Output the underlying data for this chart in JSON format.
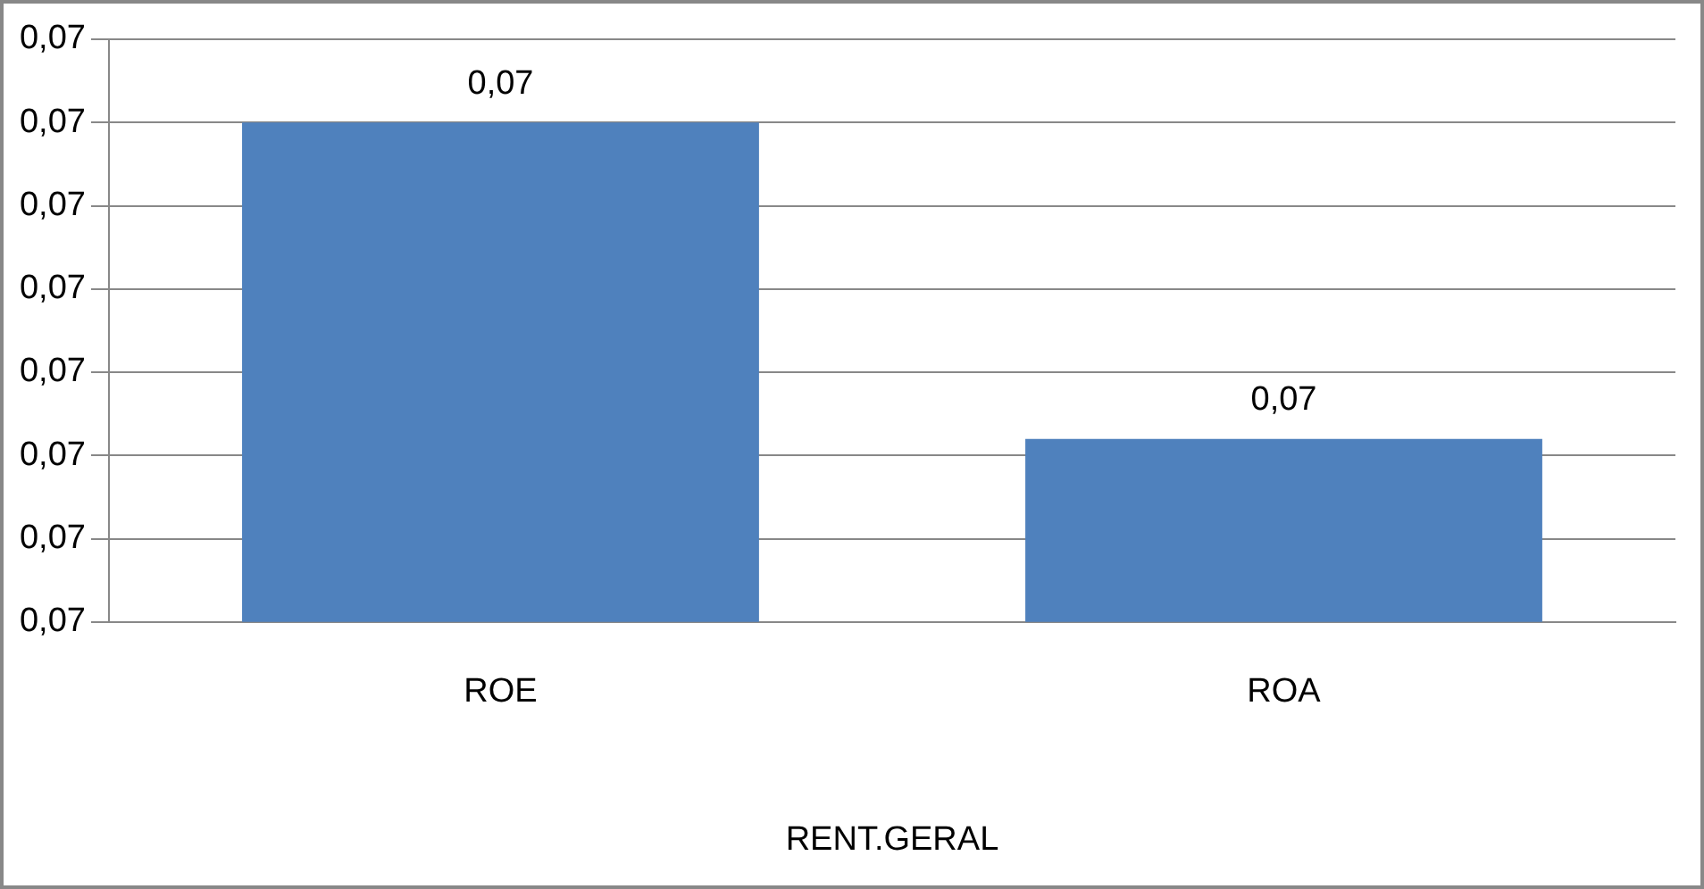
{
  "chart_data": {
    "type": "bar",
    "categories": [
      "ROE",
      "ROA"
    ],
    "xlabel": "RENT.GERAL",
    "values": [
      0.0703,
      0.06992
    ],
    "color": "#4f81bd",
    "value_labels": [
      "0,07",
      "0,07"
    ],
    "ylim": [
      0.0697,
      0.0704
    ],
    "yticks": [
      {
        "value": 0.0697,
        "label": "0,07"
      },
      {
        "value": 0.0698,
        "label": "0,07"
      },
      {
        "value": 0.0699,
        "label": "0,07"
      },
      {
        "value": 0.07,
        "label": "0,07"
      },
      {
        "value": 0.0701,
        "label": "0,07"
      },
      {
        "value": 0.0702,
        "label": "0,07"
      },
      {
        "value": 0.0703,
        "label": "0,07"
      },
      {
        "value": 0.0704,
        "label": "0,07"
      }
    ],
    "grid": "y",
    "legend": false
  }
}
